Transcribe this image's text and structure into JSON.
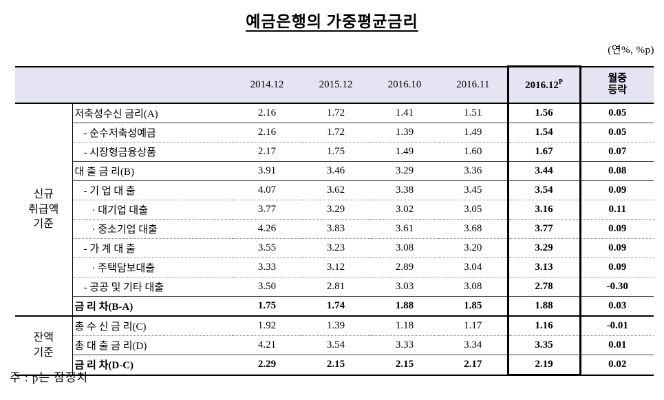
{
  "title": "예금은행의 가중평균금리",
  "unit_note": "(연%, %p)",
  "footnote": "주 : p는 잠정치",
  "columns": [
    "2014.12",
    "2015.12",
    "2016.10",
    "2016.11"
  ],
  "highlight_column": {
    "label": "2016.12",
    "sup": "P"
  },
  "change_column_label": "월중\n등락",
  "header_bg_color": "#e4e4f2",
  "groups": [
    {
      "label": "신규\n취급액\n기준",
      "rows": [
        {
          "label": "저축성수신 금리(A)",
          "indent": 0,
          "bold": false,
          "line": "solid",
          "values": [
            "2.16",
            "1.72",
            "1.41",
            "1.51",
            "1.56",
            "0.05"
          ]
        },
        {
          "label": "- 순수저축성예금",
          "indent": 1,
          "bold": false,
          "line": "dotted",
          "values": [
            "2.16",
            "1.72",
            "1.39",
            "1.49",
            "1.54",
            "0.05"
          ]
        },
        {
          "label": "- 시장형금융상품",
          "indent": 1,
          "bold": false,
          "line": "solid",
          "values": [
            "2.17",
            "1.75",
            "1.49",
            "1.60",
            "1.67",
            "0.07"
          ]
        },
        {
          "label": "대 출 금 리(B)",
          "indent": 0,
          "bold": false,
          "line": "solid",
          "values": [
            "3.91",
            "3.46",
            "3.29",
            "3.36",
            "3.44",
            "0.08"
          ]
        },
        {
          "label": "- 기 업 대 출",
          "indent": 1,
          "bold": false,
          "line": "dotted",
          "values": [
            "4.07",
            "3.62",
            "3.38",
            "3.45",
            "3.54",
            "0.09"
          ]
        },
        {
          "label": "· 대기업 대출",
          "indent": 2,
          "bold": false,
          "line": "dotted",
          "values": [
            "3.77",
            "3.29",
            "3.02",
            "3.05",
            "3.16",
            "0.11"
          ]
        },
        {
          "label": "· 중소기업 대출",
          "indent": 2,
          "bold": false,
          "line": "dotted",
          "values": [
            "4.26",
            "3.83",
            "3.61",
            "3.68",
            "3.77",
            "0.09"
          ]
        },
        {
          "label": "- 가 계 대 출",
          "indent": 1,
          "bold": false,
          "line": "dotted",
          "values": [
            "3.55",
            "3.23",
            "3.08",
            "3.20",
            "3.29",
            "0.09"
          ]
        },
        {
          "label": "· 주택담보대출",
          "indent": 2,
          "bold": false,
          "line": "dotted",
          "values": [
            "3.33",
            "3.12",
            "2.89",
            "3.04",
            "3.13",
            "0.09"
          ]
        },
        {
          "label": "- 공공 및 기타 대출",
          "indent": 1,
          "bold": false,
          "line": "solid",
          "values": [
            "3.50",
            "2.81",
            "3.03",
            "3.08",
            "2.78",
            "-0.30"
          ]
        },
        {
          "label": "금 리 차(B-A)",
          "indent": 0,
          "bold": true,
          "line": "group",
          "values": [
            "1.75",
            "1.74",
            "1.88",
            "1.85",
            "1.88",
            "0.03"
          ]
        }
      ]
    },
    {
      "label": "잔액\n기준",
      "rows": [
        {
          "label": "총 수 신 금 리(C)",
          "indent": 0,
          "bold": false,
          "line": "dotted",
          "values": [
            "1.92",
            "1.39",
            "1.18",
            "1.17",
            "1.16",
            "-0.01"
          ]
        },
        {
          "label": "총 대 출 금 리(D)",
          "indent": 0,
          "bold": false,
          "line": "solid",
          "values": [
            "4.21",
            "3.54",
            "3.33",
            "3.34",
            "3.35",
            "0.01"
          ]
        },
        {
          "label": "금 리 차(D-C)",
          "indent": 0,
          "bold": true,
          "line": "none",
          "values": [
            "2.29",
            "2.15",
            "2.15",
            "2.17",
            "2.19",
            "0.02"
          ]
        }
      ]
    }
  ]
}
